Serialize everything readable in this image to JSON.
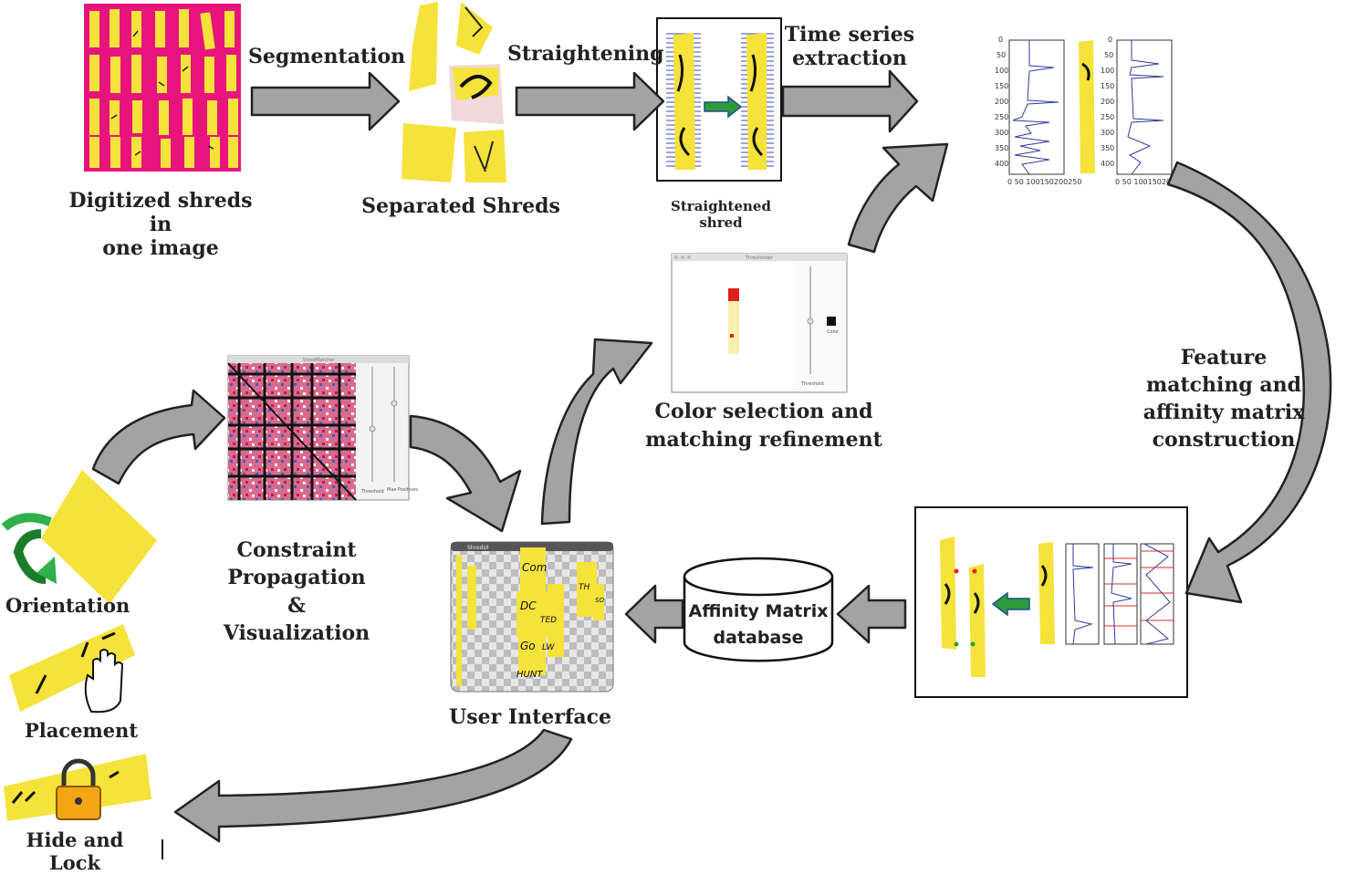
{
  "labels": {
    "digitized": "Digitized shreds in\none image",
    "separated": "Separated Shreds",
    "straightened": "Straightened\nshred",
    "segmentation": "Segmentation",
    "straightening": "Straightening",
    "time_series": "Time series\nextraction",
    "feature": "Feature\nmatching and\naffinity matrix\nconstruction",
    "color_sel": "Color selection and\nmatching refinement",
    "constraint": "Constraint Propagation\n&\nVisualization",
    "user_interface": "User Interface",
    "orientation": "Orientation",
    "placement": "Placement",
    "hide_lock": "Hide and Lock",
    "db_line1": "Affinity Matrix",
    "db_line2": "database"
  },
  "ts_axes": {
    "yticks": [
      "0",
      "50",
      "100",
      "150",
      "200",
      "250",
      "300",
      "350",
      "400"
    ],
    "xticks_left": "0  50 100150200250",
    "xticks_right": "0  50 100150200250"
  },
  "color_window": {
    "title": "Thresholder",
    "color_label": "Color",
    "threshold_label": "Threshold"
  },
  "matrix_window": {
    "title": "ShredMatcher",
    "threshold_label": "Threshold",
    "max_label": "Max\nPositives"
  },
  "ui_window": {
    "title": "ShredUI",
    "writing": [
      "Com",
      "DC",
      "TED",
      "Go",
      "LW",
      "HUNT",
      "TH",
      "SO"
    ]
  },
  "colors": {
    "shred_yellow": "#f5e23a",
    "magenta": "#e8147e",
    "arrow_grey": "#a3a3a3",
    "arrow_outline": "#222222",
    "series_blue": "#2c3c9e",
    "green_arrow": "#2f9a3c"
  }
}
